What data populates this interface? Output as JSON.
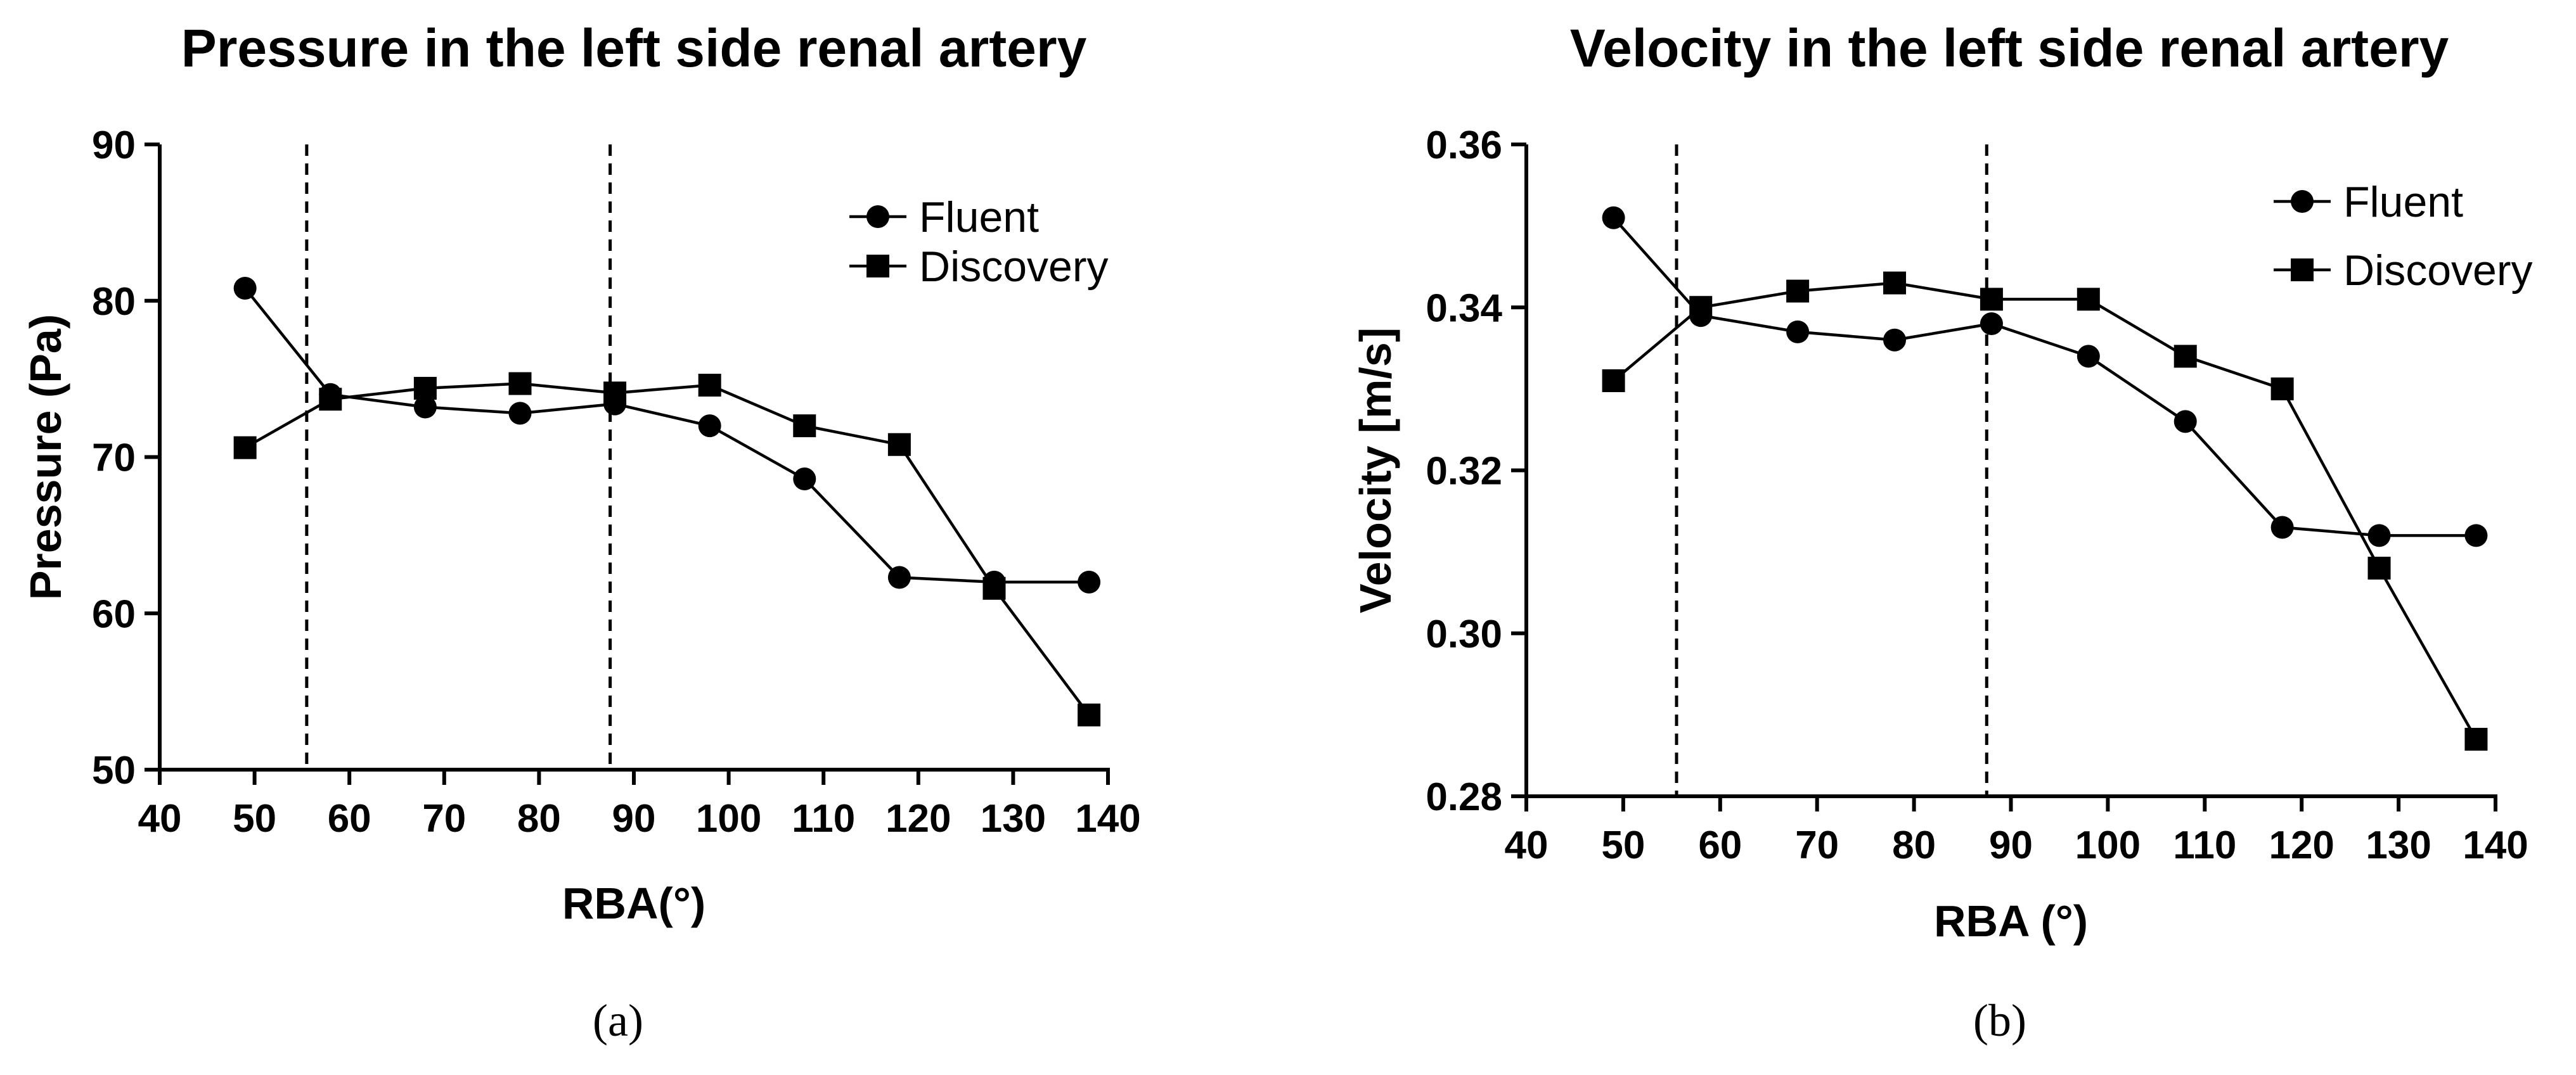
{
  "chart_data": [
    {
      "id": "a",
      "type": "line",
      "title": "Pressure in the left side renal artery",
      "xlabel": "RBA(°)",
      "ylabel": "Pressure (Pa)",
      "xlim": [
        40,
        140
      ],
      "ylim": [
        50,
        90
      ],
      "xticks": [
        40,
        50,
        60,
        70,
        80,
        90,
        100,
        110,
        120,
        130,
        140
      ],
      "yticks": [
        50,
        60,
        70,
        80,
        90
      ],
      "ytick_labels": [
        "50",
        "60",
        "70",
        "80",
        "90"
      ],
      "x": [
        49,
        58,
        68,
        78,
        88,
        98,
        108,
        118,
        128,
        138
      ],
      "series": [
        {
          "name": "Fluent",
          "marker": "circle",
          "values": [
            80.8,
            74.0,
            73.2,
            72.8,
            73.4,
            72.0,
            68.6,
            62.3,
            62.0,
            62.0
          ]
        },
        {
          "name": "Discovery",
          "marker": "square",
          "values": [
            70.6,
            73.7,
            74.4,
            74.7,
            74.1,
            74.6,
            72.0,
            70.8,
            61.6,
            53.5
          ]
        }
      ],
      "reference_lines_x": [
        55.5,
        87.5
      ],
      "legend_position": "top-right",
      "caption": "(a)"
    },
    {
      "id": "b",
      "type": "line",
      "title": "Velocity in the left side renal artery",
      "xlabel": "RBA (°)",
      "ylabel": "Velocity [m/s]",
      "xlim": [
        40,
        140
      ],
      "ylim": [
        0.28,
        0.36
      ],
      "xticks": [
        40,
        50,
        60,
        70,
        80,
        90,
        100,
        110,
        120,
        130,
        140
      ],
      "yticks": [
        0.28,
        0.3,
        0.32,
        0.34,
        0.36
      ],
      "ytick_labels": [
        "0.28",
        "0.30",
        "0.32",
        "0.34",
        "0.36"
      ],
      "x": [
        49,
        58,
        68,
        78,
        88,
        98,
        108,
        118,
        128,
        138
      ],
      "series": [
        {
          "name": "Fluent",
          "marker": "circle",
          "values": [
            0.351,
            0.339,
            0.337,
            0.336,
            0.338,
            0.334,
            0.326,
            0.313,
            0.312,
            0.312
          ]
        },
        {
          "name": "Discovery",
          "marker": "square",
          "values": [
            0.331,
            0.34,
            0.342,
            0.343,
            0.341,
            0.341,
            0.334,
            0.33,
            0.308,
            0.287
          ]
        }
      ],
      "reference_lines_x": [
        55.5,
        87.5
      ],
      "legend_position": "top-right",
      "caption": "(b)"
    }
  ]
}
